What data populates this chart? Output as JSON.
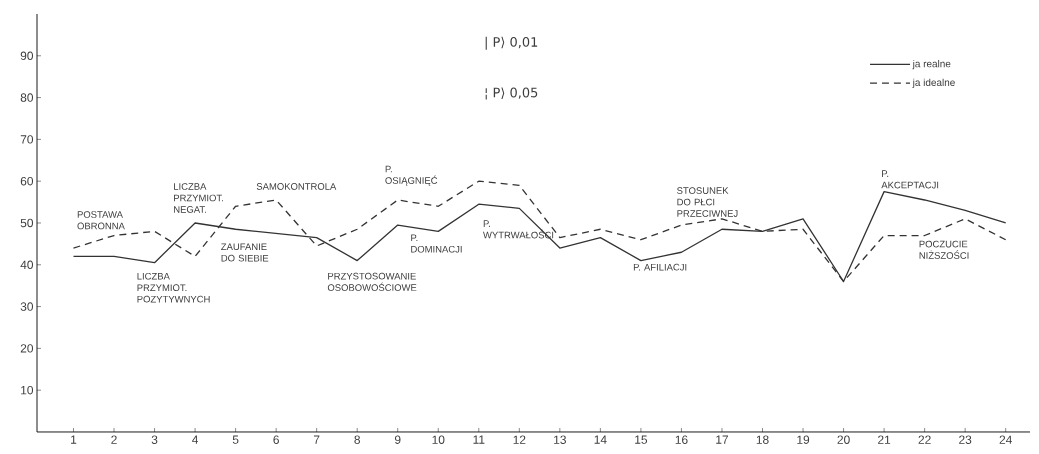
{
  "chart_data": {
    "type": "line",
    "x": [
      1,
      2,
      3,
      4,
      5,
      6,
      7,
      8,
      9,
      10,
      11,
      12,
      13,
      14,
      15,
      16,
      17,
      18,
      19,
      20,
      21,
      22,
      23,
      24
    ],
    "xlim": [
      0.1,
      24.6
    ],
    "xticks": [
      1,
      2,
      3,
      4,
      5,
      6,
      7,
      8,
      9,
      10,
      11,
      12,
      13,
      14,
      15,
      16,
      17,
      18,
      19,
      20,
      21,
      22,
      23,
      24
    ],
    "ylim": [
      0,
      100
    ],
    "yticks": [
      10,
      20,
      30,
      40,
      50,
      60,
      70,
      80,
      90
    ],
    "legend": "top right",
    "marker": "none",
    "series": [
      {
        "name": "ja realne",
        "color": "#333333",
        "line_style": "solid",
        "values": [
          42,
          42,
          40.5,
          50,
          48.5,
          47.5,
          46.5,
          41,
          49.5,
          48,
          54.5,
          53.5,
          44,
          46.5,
          41,
          43,
          48.5,
          48,
          51,
          36,
          57.5,
          55.5,
          53,
          50
        ]
      },
      {
        "name": "ja idealne",
        "color": "#333333",
        "line_style": "dashed",
        "values": [
          44,
          47,
          48,
          42,
          54,
          55.5,
          44.5,
          48.5,
          55.5,
          54,
          60,
          59,
          46.5,
          48.5,
          46,
          49.5,
          51,
          48,
          48.5,
          36,
          47,
          47,
          51,
          46
        ]
      }
    ],
    "annotations": [
      {
        "text": "POSTAWA OBRONNA",
        "x": 2,
        "y": 47
      },
      {
        "text": "LICZBA PRZYMIOT. POZYTYWNYCH",
        "x": 3,
        "y": 40.5
      },
      {
        "text": "LICZBA PRZYMIOT. NEGAT.",
        "x": 4,
        "y": 50
      },
      {
        "text": "ZAUFANIE DO SIEBIE",
        "x": 5,
        "y": 48.5
      },
      {
        "text": "SAMOKONTROLA",
        "x": 6,
        "y": 55.5
      },
      {
        "text": "PRZYSTOSOWANIE OSOBOWOŚCIOWE",
        "x": 8,
        "y": 41
      },
      {
        "text": "P. OSIĄGNIĘĆ",
        "x": 9,
        "y": 55.5
      },
      {
        "text": "P. DOMINACJI",
        "x": 10,
        "y": 48
      },
      {
        "text": "P. WYTRWAŁOŚCI",
        "x": 11,
        "y": 54.5
      },
      {
        "text": "P. AFILIACJI",
        "x": 15,
        "y": 41
      },
      {
        "text": "STOSUNEK DO PŁCI PRZECIWNEJ",
        "x": 16,
        "y": 49.5
      },
      {
        "text": "P. AKCEPTACJI",
        "x": 21,
        "y": 57.5
      },
      {
        "text": "POCZUCIE NIŻSZOŚCI",
        "x": 22,
        "y": 47
      },
      "| P⟩ 0,01",
      "¦ P⟩ 0,05"
    ]
  }
}
